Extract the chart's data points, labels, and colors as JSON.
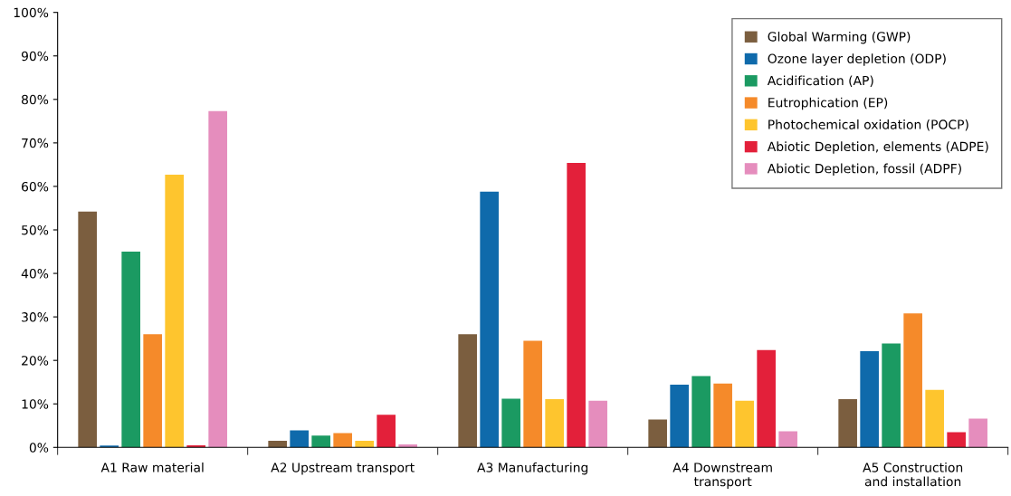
{
  "chart_data": {
    "type": "bar",
    "categories": [
      "A1 Raw material",
      "A2 Upstream transport",
      "A3 Manufacturing",
      "A4 Downstream\ntransport",
      "A5 Construction\nand installation"
    ],
    "series": [
      {
        "name": "Global Warming (GWP)",
        "color": "#7b5e3f",
        "values": [
          54.2,
          1.5,
          26.0,
          6.4,
          11.1
        ]
      },
      {
        "name": "Ozone layer depletion (ODP)",
        "color": "#0f6aab",
        "values": [
          0.4,
          3.9,
          58.8,
          14.4,
          22.1
        ]
      },
      {
        "name": "Acidification (AP)",
        "color": "#1b9a62",
        "values": [
          45.0,
          2.7,
          11.2,
          16.4,
          23.9
        ]
      },
      {
        "name": "Eutrophication (EP)",
        "color": "#f58a2a",
        "values": [
          26.0,
          3.3,
          24.5,
          14.7,
          30.8
        ]
      },
      {
        "name": "Photochemical oxidation (POCP)",
        "color": "#fec52e",
        "values": [
          62.7,
          1.5,
          11.1,
          10.7,
          13.2
        ]
      },
      {
        "name": "Abiotic Depletion, elements (ADPE)",
        "color": "#e3203a",
        "values": [
          0.5,
          7.5,
          65.4,
          22.4,
          3.5
        ]
      },
      {
        "name": "Abiotic Depletion, fossil (ADPF)",
        "color": "#e58dbd",
        "values": [
          77.3,
          0.7,
          10.7,
          3.7,
          6.6
        ]
      }
    ],
    "ylim": [
      0,
      100
    ],
    "yticks": [
      {
        "value": 0,
        "label": "0%"
      },
      {
        "value": 10,
        "label": "10%"
      },
      {
        "value": 20,
        "label": "20%"
      },
      {
        "value": 30,
        "label": "30%"
      },
      {
        "value": 40,
        "label": "40%"
      },
      {
        "value": 50,
        "label": "50%"
      },
      {
        "value": 60,
        "label": "60%"
      },
      {
        "value": 70,
        "label": "70%"
      },
      {
        "value": 80,
        "label": "80%"
      },
      {
        "value": 90,
        "label": "90%"
      },
      {
        "value": 100,
        "label": "100%"
      }
    ],
    "grid": false,
    "legend": "top right"
  }
}
